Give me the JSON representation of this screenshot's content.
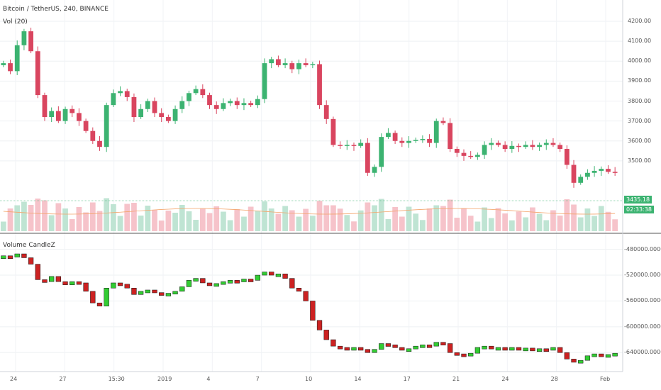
{
  "header": {
    "title": "Bitcoin / TetherUS, 240, BINANCE",
    "vol_label": "Vol (20)",
    "indicator_label": "Volume CandleZ"
  },
  "colors": {
    "up": "#3cb371",
    "down": "#d9455f",
    "vol_up": "#bfe4d3",
    "vol_down": "#f6c3ca",
    "vol_ma": "#f4a46a",
    "ind_up": "#33cc33",
    "ind_down": "#cc2222",
    "price_tag_bg": "#3cb371"
  },
  "price_axis": [
    "4200.00",
    "4100.00",
    "4000.00",
    "3900.00",
    "3800.00",
    "3700.00",
    "3600.00",
    "3500.00"
  ],
  "indicator_axis": [
    "-480000.0000",
    "-520000.0000",
    "-560000.0000",
    "-600000.0000",
    "-640000.0000"
  ],
  "time_axis": [
    "24",
    "27",
    "15:30",
    "2019",
    "4",
    "7",
    "10",
    "14",
    "17",
    "21",
    "24",
    "28",
    "Feb"
  ],
  "current_price": "3435.18",
  "countdown": "02:33:38",
  "chart_data": {
    "type": "candlestick",
    "title": "Bitcoin / TetherUS, 240, BINANCE",
    "price_range": [
      3400,
      4250
    ],
    "indicator_range": [
      -665000,
      -465000
    ],
    "price_close": [
      3990,
      3950,
      4080,
      4150,
      4050,
      3830,
      3720,
      3750,
      3700,
      3760,
      3740,
      3700,
      3650,
      3600,
      3570,
      3780,
      3840,
      3850,
      3820,
      3720,
      3760,
      3800,
      3740,
      3720,
      3700,
      3760,
      3800,
      3840,
      3860,
      3830,
      3780,
      3760,
      3790,
      3800,
      3780,
      3790,
      3780,
      3810,
      3990,
      4010,
      3980,
      3990,
      3960,
      3990,
      3980,
      3985,
      3780,
      3710,
      3580,
      3575,
      3580,
      3575,
      3590,
      3440,
      3470,
      3620,
      3640,
      3600,
      3590,
      3600,
      3605,
      3610,
      3590,
      3700,
      3690,
      3560,
      3540,
      3525,
      3520,
      3530,
      3580,
      3590,
      3580,
      3560,
      3575,
      3570,
      3580,
      3570,
      3580,
      3590,
      3580,
      3560,
      3480,
      3390,
      3420,
      3440,
      3450,
      3460,
      3445,
      3440
    ],
    "indicator_values": [
      -490000,
      -492000,
      -487000,
      -493000,
      -503000,
      -527000,
      -530000,
      -522000,
      -530000,
      -535000,
      -530000,
      -532000,
      -545000,
      -563000,
      -568000,
      -540000,
      -532000,
      -534000,
      -540000,
      -550000,
      -545000,
      -543000,
      -547000,
      -550000,
      -548000,
      -545000,
      -538000,
      -528000,
      -525000,
      -532000,
      -535000,
      -533000,
      -530000,
      -528000,
      -530000,
      -526000,
      -528000,
      -520000,
      -515000,
      -520000,
      -518000,
      -525000,
      -540000,
      -545000,
      -560000,
      -590000,
      -605000,
      -620000,
      -630000,
      -632000,
      -634000,
      -632000,
      -635000,
      -640000,
      -635000,
      -626000,
      -628000,
      -632000,
      -636000,
      -634000,
      -630000,
      -628000,
      -630000,
      -624000,
      -626000,
      -640000,
      -642000,
      -645000,
      -641000,
      -632000,
      -630000,
      -634000,
      -632000,
      -634000,
      -632000,
      -634000,
      -633000,
      -635000,
      -634000,
      -636000,
      -632000,
      -640000,
      -650000,
      -655000,
      -652000,
      -645000,
      -642000,
      -646000,
      -643000,
      -641000
    ]
  }
}
